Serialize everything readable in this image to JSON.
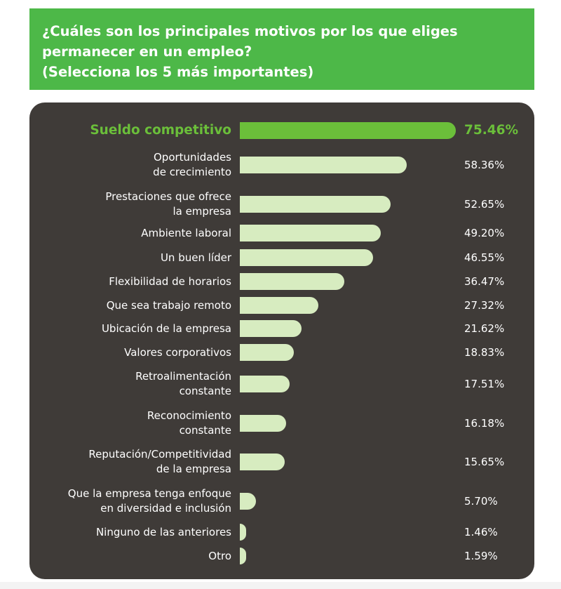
{
  "header": {
    "title_lines": [
      "¿Cuáles son los principales motivos por los que eliges",
      "permanecer en un empleo?",
      "(Selecciona los 5 más importantes)"
    ]
  },
  "colors": {
    "header_bg": "#4db848",
    "panel_bg": "#3f3b38",
    "bar": "#d7ecc0",
    "highlight_bar": "#6bbf3a",
    "highlight_text": "#6bbf3a",
    "text": "#ffffff"
  },
  "chart_data": {
    "type": "bar",
    "orientation": "horizontal",
    "categories": [
      "Sueldo competitivo",
      "Oportunidades de crecimiento",
      "Prestaciones que ofrece la empresa",
      "Ambiente laboral",
      "Un buen líder",
      "Flexibilidad de horarios",
      "Que sea trabajo remoto",
      "Ubicación de la empresa",
      "Valores corporativos",
      "Retroalimentación constante",
      "Reconocimiento constante",
      "Reputación/Competitividad de la empresa",
      "Que la empresa tenga enfoque en diversidad e inclusión",
      "Ninguno de las anteriores",
      "Otro"
    ],
    "label_lines": [
      [
        "Sueldo competitivo"
      ],
      [
        "Oportunidades",
        "de crecimiento"
      ],
      [
        "Prestaciones que ofrece",
        "la empresa"
      ],
      [
        "Ambiente laboral"
      ],
      [
        "Un buen líder"
      ],
      [
        "Flexibilidad de horarios"
      ],
      [
        "Que sea trabajo remoto"
      ],
      [
        "Ubicación de la empresa"
      ],
      [
        "Valores corporativos"
      ],
      [
        "Retroalimentación",
        "constante"
      ],
      [
        "Reconocimiento",
        "constante"
      ],
      [
        "Reputación/Competitividad",
        "de la empresa"
      ],
      [
        "Que la empresa tenga enfoque",
        "en diversidad e inclusión"
      ],
      [
        "Ninguno de las anteriores"
      ],
      [
        "Otro"
      ]
    ],
    "values": [
      75.46,
      58.36,
      52.65,
      49.2,
      46.55,
      36.47,
      27.32,
      21.62,
      18.83,
      17.51,
      16.18,
      15.65,
      5.7,
      1.46,
      1.59
    ],
    "value_labels": [
      "75.46%",
      "58.36%",
      "52.65%",
      "49.20%",
      "46.55%",
      "36.47%",
      "27.32%",
      "21.62%",
      "18.83%",
      "17.51%",
      "16.18%",
      "15.65%",
      "5.70%",
      "1.46%",
      "1.59%"
    ],
    "highlight_index": 0,
    "ylabel": "",
    "xlabel": ""
  }
}
